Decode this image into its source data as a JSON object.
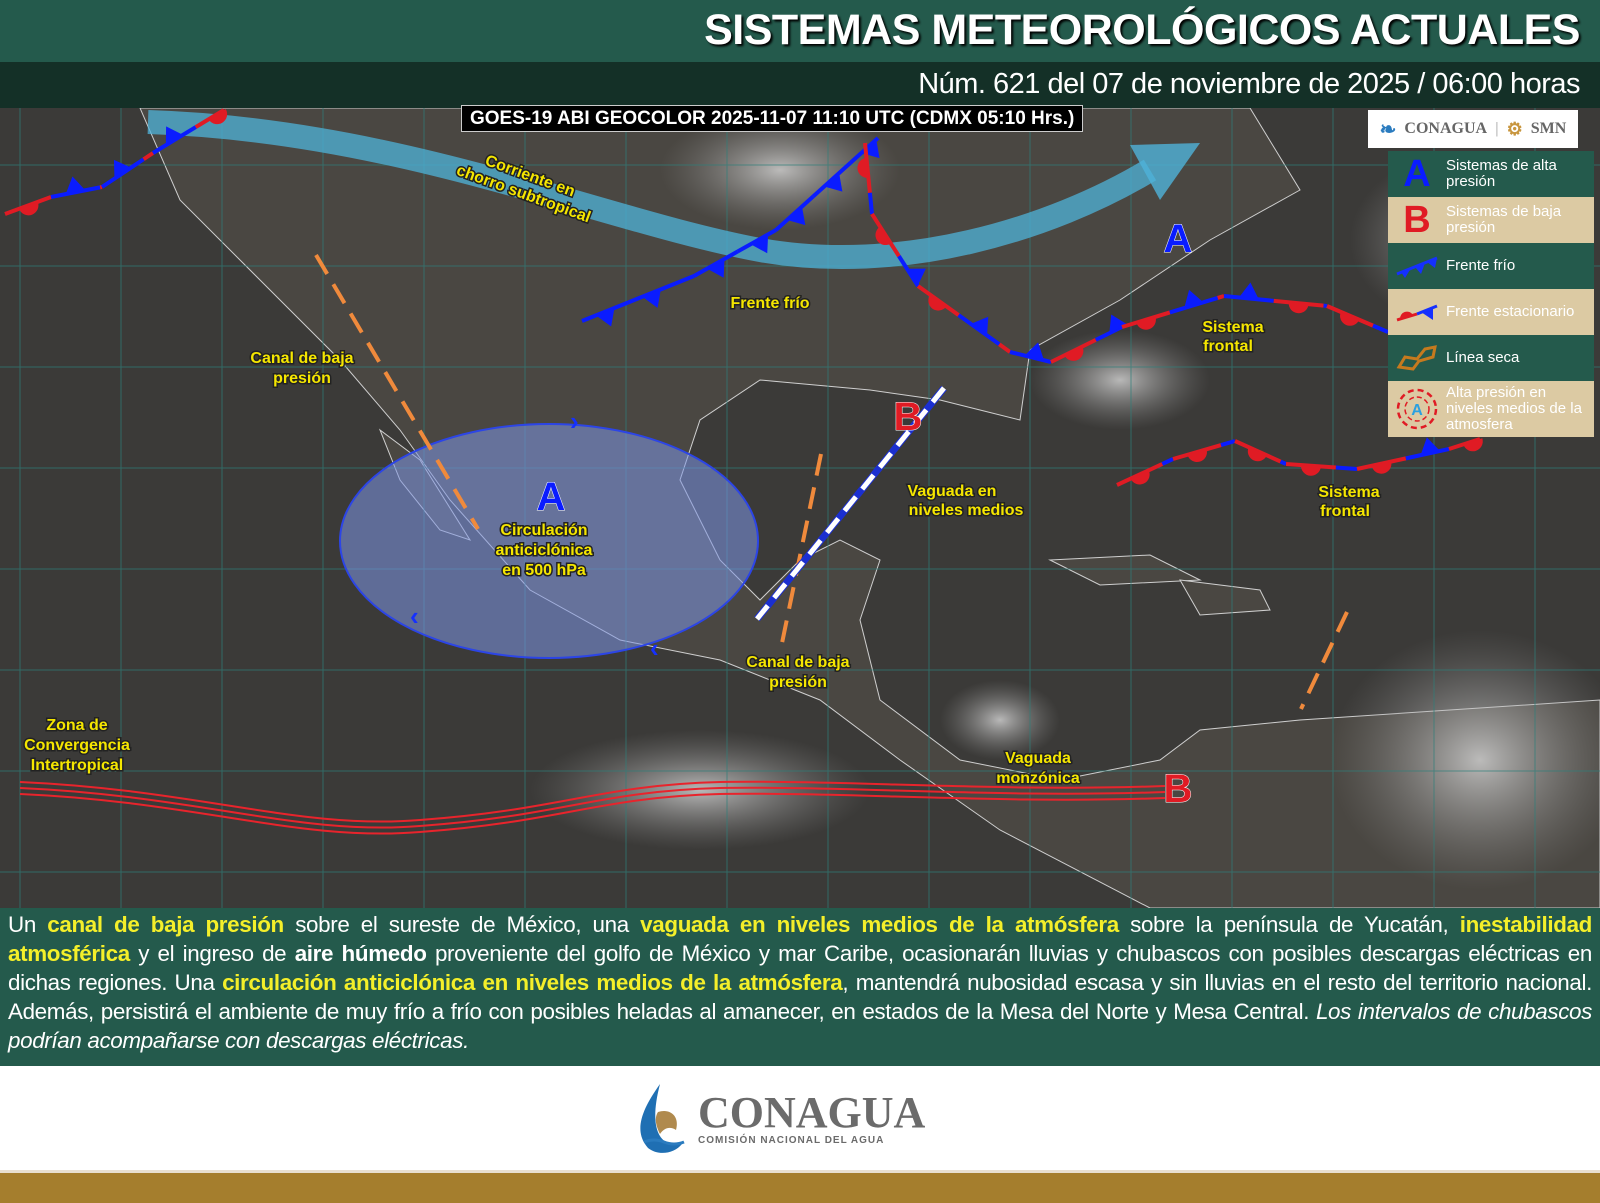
{
  "header": {
    "title": "SISTEMAS METEOROLÓGICOS ACTUALES",
    "subtitle": "Núm. 621 del 07 de noviembre de 2025 / 06:00 horas"
  },
  "map": {
    "satellite_label": "GOES-19 ABI GEOCOLOR 2025-11-07 11:10 UTC (CDMX  05:10 Hrs.)",
    "logos": {
      "conagua": "CONAGUA",
      "smn": "SMN"
    },
    "pressure_symbols": {
      "high": "A",
      "low": "B"
    },
    "labels": {
      "jet": [
        "Corriente en",
        "chorro subtropical"
      ],
      "cold_front": "Frente frío",
      "canal_nw": [
        "Canal de baja",
        "presión"
      ],
      "anticyclone": [
        "Circulación",
        "anticiclónica",
        "en 500 hPa"
      ],
      "trough": [
        "Vaguada en",
        "niveles medios"
      ],
      "frontal1": [
        "Sistema",
        "frontal"
      ],
      "frontal2": [
        "Sistema",
        "frontal"
      ],
      "canal_se": [
        "Canal de baja",
        "presión"
      ],
      "itcz": [
        "Zona de",
        "Convergencia",
        "Intertropical"
      ],
      "monsoon": [
        "Vaguada",
        "monzónica"
      ]
    },
    "colors": {
      "high": "#0a1cff",
      "low": "#e01b24",
      "label": "#f5e600",
      "dry_line": "#f08a3c",
      "jet": "#4fb3d9"
    }
  },
  "legend": [
    {
      "icon": "A",
      "label": "Sistemas de alta presión"
    },
    {
      "icon": "B",
      "label": "Sistemas de baja presión"
    },
    {
      "icon": "cold-front-icon",
      "label": "Frente frío"
    },
    {
      "icon": "stationary-front-icon",
      "label": "Frente estacionario"
    },
    {
      "icon": "dry-line-icon",
      "label": "Línea seca"
    },
    {
      "icon": "A",
      "label": "Alta presión en niveles medios de la atmosfera"
    }
  ],
  "description": [
    {
      "text": "Un ",
      "style": "normal"
    },
    {
      "text": "canal de baja presión",
      "style": "highlight"
    },
    {
      "text": " sobre el sureste de México, una ",
      "style": "normal"
    },
    {
      "text": "vaguada en niveles medios de la atmósfera",
      "style": "highlight"
    },
    {
      "text": " sobre la península de Yucatán, ",
      "style": "normal"
    },
    {
      "text": "inestabilidad atmosférica",
      "style": "highlight"
    },
    {
      "text": " y el ingreso de ",
      "style": "normal"
    },
    {
      "text": "aire húmedo",
      "style": "bold"
    },
    {
      "text": " proveniente del golfo de México y mar Caribe, ocasionarán lluvias y chubascos con posibles descargas eléctricas en dichas regiones. Una ",
      "style": "normal"
    },
    {
      "text": "circulación anticiclónica en niveles medios de la atmósfera",
      "style": "highlight"
    },
    {
      "text": ", mantendrá nubosidad escasa y sin lluvias en el resto del territorio nacional. Además, persistirá el ambiente de muy frío a frío con posibles heladas al amanecer, en estados de la Mesa del Norte y Mesa Central. ",
      "style": "normal"
    },
    {
      "text": "Los intervalos de chubascos podrían acompañarse con descargas eléctricas.",
      "style": "italic"
    }
  ],
  "footer": {
    "logo_name": "CONAGUA",
    "logo_sub": "COMISIÓN NACIONAL DEL AGUA"
  }
}
